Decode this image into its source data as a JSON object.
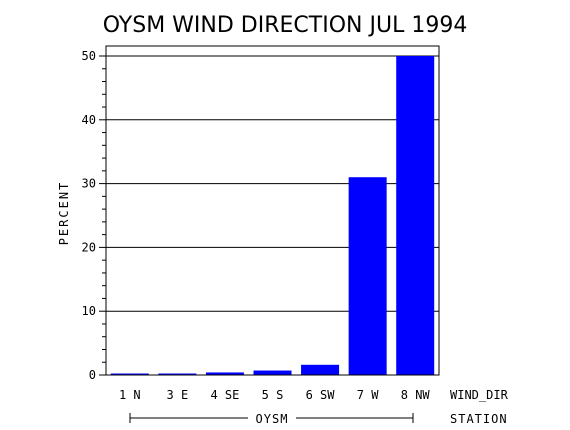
{
  "chart_data": {
    "type": "bar",
    "title": "OYSM WIND DIRECTION JUL 1994",
    "ylabel": "PERCENT",
    "xlabel": "WIND_DIR",
    "group_axis_label": "STATION",
    "group_label": "OYSM",
    "categories": [
      "1 N",
      "3 E",
      "4 SE",
      "5 S",
      "6 SW",
      "7 W",
      "8 NW"
    ],
    "values": [
      0.2,
      0.2,
      0.4,
      0.7,
      1.6,
      31,
      50
    ],
    "ylim": [
      0,
      50
    ],
    "yticks": [
      0,
      10,
      20,
      30,
      40,
      50
    ],
    "grid": true,
    "bar_color": "#0000ff"
  }
}
